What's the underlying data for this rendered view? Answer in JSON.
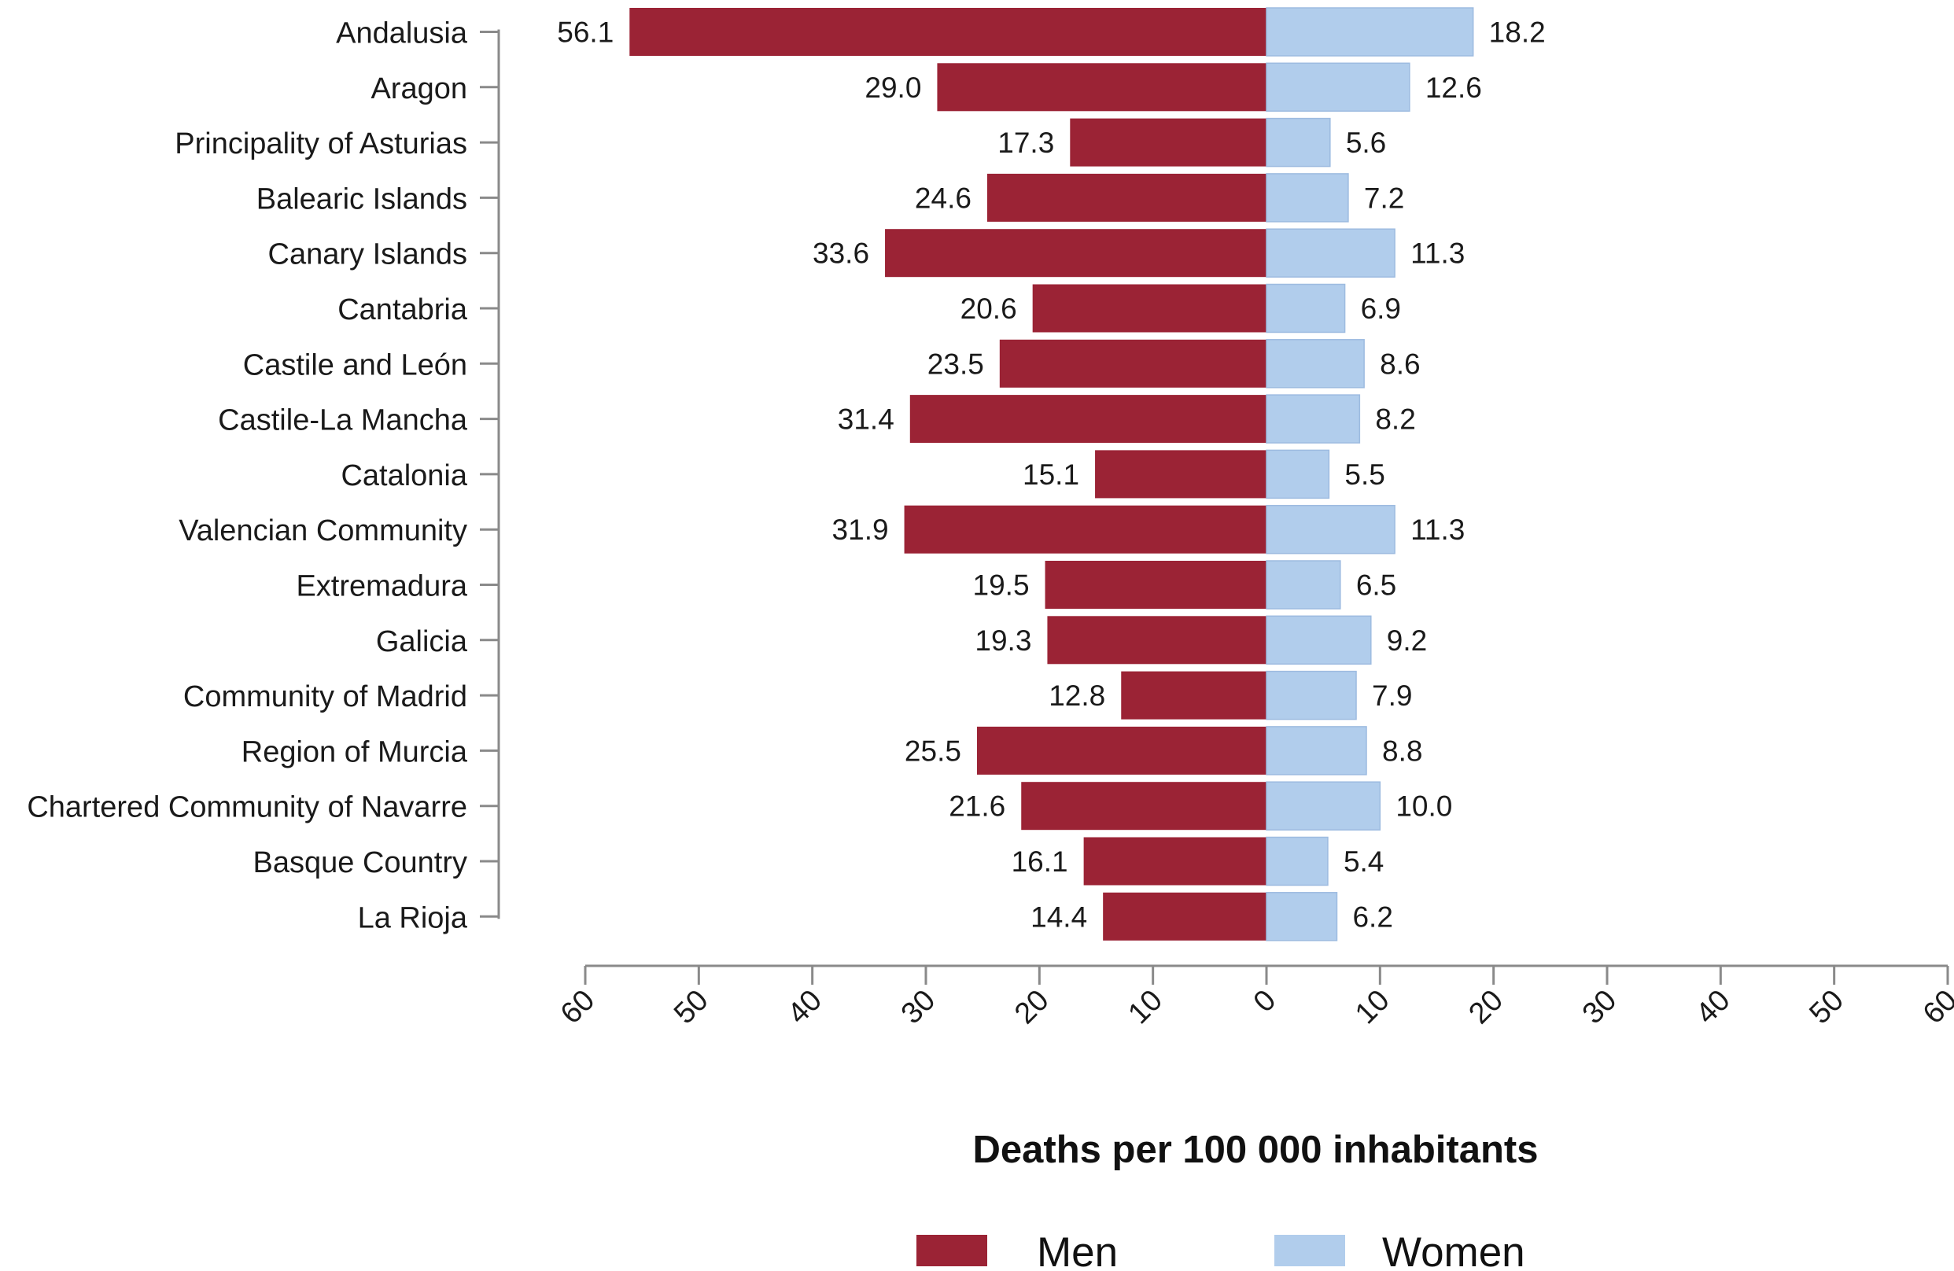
{
  "chart_data": {
    "type": "bar",
    "orientation": "horizontal-butterfly",
    "categories": [
      "Andalusia",
      "Aragon",
      "Principality of Asturias",
      "Balearic Islands",
      "Canary Islands",
      "Cantabria",
      "Castile and León",
      "Castile-La Mancha",
      "Catalonia",
      "Valencian Community",
      "Extremadura",
      "Galicia",
      "Community of Madrid",
      "Region of Murcia",
      "Chartered Community of Navarre",
      "Basque Country",
      "La Rioja"
    ],
    "series": [
      {
        "name": "Men",
        "color": "#9b2335",
        "side": "left",
        "values": [
          56.1,
          29.0,
          17.3,
          24.6,
          33.6,
          20.6,
          23.5,
          31.4,
          15.1,
          31.9,
          19.5,
          19.3,
          12.8,
          25.5,
          21.6,
          16.1,
          14.4
        ],
        "labels": [
          "56.1",
          "29.0",
          "17.3",
          "24.6",
          "33.6",
          "20.6",
          "23.5",
          "31.4",
          "15.1",
          "31.9",
          "19.5",
          "19.3",
          "12.8",
          "25.5",
          "21.6",
          "16.1",
          "14.4"
        ]
      },
      {
        "name": "Women",
        "color": "#b1cdec",
        "side": "right",
        "values": [
          18.2,
          12.6,
          5.6,
          7.2,
          11.3,
          6.9,
          8.6,
          8.2,
          5.5,
          11.3,
          6.5,
          9.2,
          7.9,
          8.8,
          10.0,
          5.4,
          6.2
        ],
        "labels": [
          "18.2",
          "12.6",
          "5.6",
          "7.2",
          "11.3",
          "6.9",
          "8.6",
          "8.2",
          "5.5",
          "11.3",
          "6.5",
          "9.2",
          "7.9",
          "8.8",
          "10.0",
          "5.4",
          "6.2"
        ]
      }
    ],
    "xlim": [
      -60,
      60
    ],
    "x_ticks": [
      "60",
      "50",
      "40",
      "30",
      "20",
      "10",
      "0",
      "10",
      "20",
      "30",
      "40",
      "50",
      "60"
    ],
    "xlabel": "Deaths per 100 000 inhabitants",
    "ylabel": "",
    "title": "",
    "legend": {
      "placement": "bottom-center",
      "entries": [
        "Men",
        "Women"
      ]
    },
    "grid": false
  }
}
